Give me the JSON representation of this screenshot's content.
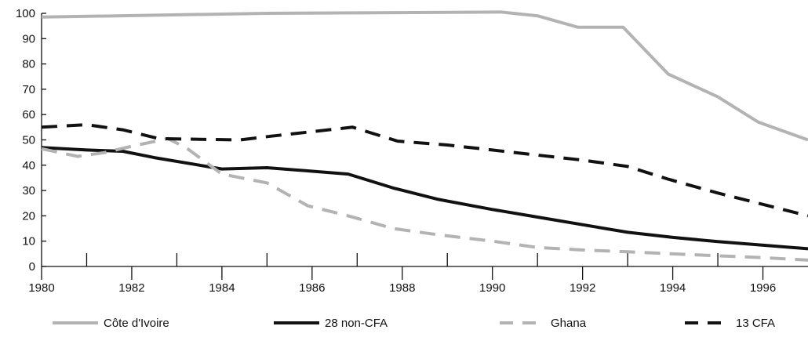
{
  "chart_data": {
    "type": "line",
    "title": "",
    "xlabel": "",
    "ylabel": "",
    "xlim": [
      1980,
      1997
    ],
    "ylim": [
      0,
      100
    ],
    "x_ticks": [
      1980,
      1982,
      1984,
      1986,
      1988,
      1990,
      1992,
      1994,
      1996
    ],
    "x_tick_labels": [
      "1980",
      "1982",
      "1984",
      "1986",
      "1988",
      "1990",
      "1992",
      "1994",
      "1996"
    ],
    "y_ticks": [
      0,
      10,
      20,
      30,
      40,
      50,
      60,
      70,
      80,
      90,
      100
    ],
    "y_tick_labels": [
      "0",
      "10",
      "20",
      "30",
      "40",
      "50",
      "60",
      "70",
      "80",
      "90",
      "100"
    ],
    "grid": false,
    "legend_position": "bottom",
    "series": [
      {
        "name": "Côte d'Ivoire",
        "color": "#b3b3b3",
        "style": "solid",
        "points": [
          [
            1980,
            98.5
          ],
          [
            1985,
            100
          ],
          [
            1990.2,
            100.5
          ],
          [
            1991,
            99
          ],
          [
            1991.9,
            94.5
          ],
          [
            1992.9,
            94.5
          ],
          [
            1993.9,
            76
          ],
          [
            1995,
            67
          ],
          [
            1995.9,
            57
          ],
          [
            1997,
            50
          ]
        ]
      },
      {
        "name": "28 non-CFA",
        "color": "#111111",
        "style": "solid",
        "points": [
          [
            1980,
            47
          ],
          [
            1981,
            46
          ],
          [
            1981.8,
            45.5
          ],
          [
            1982.5,
            43
          ],
          [
            1984,
            38.5
          ],
          [
            1985,
            39
          ],
          [
            1986.8,
            36.5
          ],
          [
            1987.8,
            31
          ],
          [
            1988.8,
            26.5
          ],
          [
            1990,
            22.5
          ],
          [
            1991,
            19.5
          ],
          [
            1993,
            13.5
          ],
          [
            1994,
            11.5
          ],
          [
            1995,
            9.8
          ],
          [
            1997,
            7
          ]
        ]
      },
      {
        "name": "Ghana",
        "color": "#b3b3b3",
        "style": "dashed",
        "points": [
          [
            1980,
            46.5
          ],
          [
            1980.8,
            43.5
          ],
          [
            1981.4,
            45
          ],
          [
            1982,
            47.5
          ],
          [
            1982.8,
            50.5
          ],
          [
            1983.2,
            47
          ],
          [
            1984,
            36.5
          ],
          [
            1985,
            33
          ],
          [
            1985.9,
            24
          ],
          [
            1986.8,
            20
          ],
          [
            1987.8,
            15
          ],
          [
            1988.8,
            12.5
          ],
          [
            1990,
            10
          ],
          [
            1991,
            7.5
          ],
          [
            1992,
            6.5
          ],
          [
            1993,
            5.8
          ],
          [
            1994,
            5
          ],
          [
            1995,
            4.2
          ],
          [
            1996,
            3.5
          ],
          [
            1997,
            2.5
          ]
        ]
      },
      {
        "name": "13 CFA",
        "color": "#111111",
        "style": "dashed",
        "points": [
          [
            1980,
            55
          ],
          [
            1981,
            56
          ],
          [
            1981.8,
            54
          ],
          [
            1982.6,
            50.5
          ],
          [
            1984.4,
            50
          ],
          [
            1985.1,
            51.5
          ],
          [
            1986.9,
            55
          ],
          [
            1987.9,
            49.5
          ],
          [
            1989,
            48
          ],
          [
            1990,
            46
          ],
          [
            1991,
            44
          ],
          [
            1992,
            42
          ],
          [
            1993,
            39.5
          ],
          [
            1993.9,
            34.5
          ],
          [
            1995,
            29
          ],
          [
            1995.9,
            25
          ],
          [
            1997,
            20
          ]
        ]
      }
    ]
  }
}
